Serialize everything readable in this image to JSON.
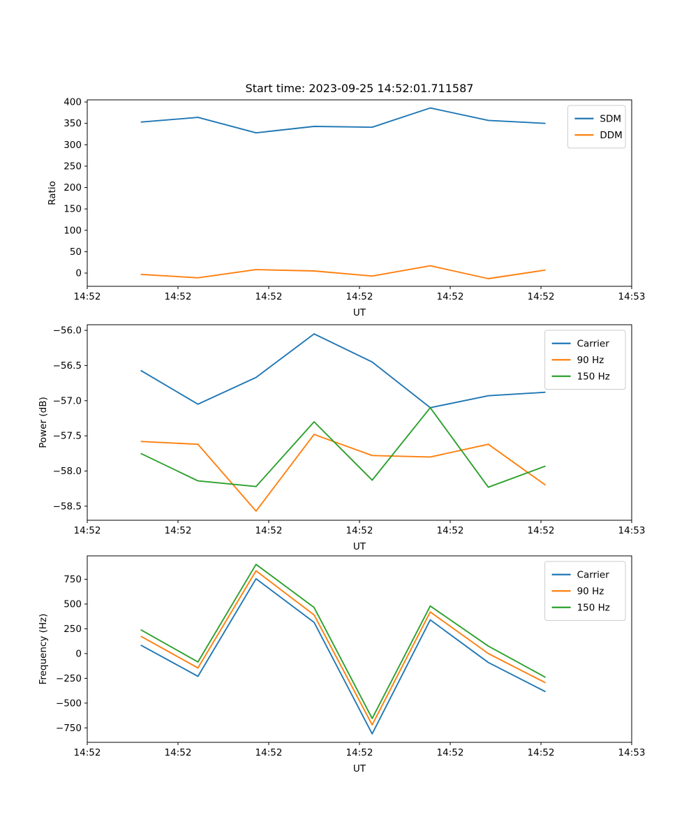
{
  "figure": {
    "title": "Start time: 2023-09-25 14:52:01.711587",
    "background": "#ffffff",
    "text_color": "#000000"
  },
  "palette": {
    "blue": "#1f77b4",
    "orange": "#ff7f0e",
    "green": "#2ca02c"
  },
  "chart_data": [
    {
      "type": "line",
      "name": "ratio",
      "ylabel": "Ratio",
      "xlabel": "UT",
      "xlim": [
        0,
        60
      ],
      "x_seconds": [
        5.9,
        12.2,
        18.6,
        25.0,
        31.4,
        37.8,
        44.2,
        50.5
      ],
      "x_tick_positions": [
        0,
        10,
        20,
        30,
        40,
        50,
        60
      ],
      "x_tick_labels": [
        "14:52",
        "14:52",
        "14:52",
        "14:52",
        "14:52",
        "14:52",
        "14:53"
      ],
      "ylim": [
        -31,
        405
      ],
      "y_tick_values": [
        0,
        50,
        100,
        150,
        200,
        250,
        300,
        350,
        400
      ],
      "y_tick_labels": [
        "0",
        "50",
        "100",
        "150",
        "200",
        "250",
        "300",
        "350",
        "400"
      ],
      "grid": false,
      "legend_position": "top-right",
      "series": [
        {
          "name": "SDM",
          "color": "#1f77b4",
          "values": [
            353,
            364,
            328,
            343,
            341,
            386,
            357,
            350
          ]
        },
        {
          "name": "DDM",
          "color": "#ff7f0e",
          "values": [
            -3,
            -11,
            8,
            5,
            -7,
            17,
            -13,
            7
          ]
        }
      ]
    },
    {
      "type": "line",
      "name": "power",
      "ylabel": "Power (dB)",
      "xlabel": "UT",
      "xlim": [
        0,
        60
      ],
      "x_seconds": [
        5.9,
        12.2,
        18.6,
        25.0,
        31.4,
        37.8,
        44.2,
        50.5
      ],
      "x_tick_positions": [
        0,
        10,
        20,
        30,
        40,
        50,
        60
      ],
      "x_tick_labels": [
        "14:52",
        "14:52",
        "14:52",
        "14:52",
        "14:52",
        "14:52",
        "14:53"
      ],
      "ylim": [
        -58.7,
        -55.92
      ],
      "y_tick_values": [
        -56.0,
        -56.5,
        -57.0,
        -57.5,
        -58.0,
        -58.5
      ],
      "y_tick_labels": [
        "−56.0",
        "−56.5",
        "−57.0",
        "−57.5",
        "−58.0",
        "−58.5"
      ],
      "grid": false,
      "legend_position": "top-right",
      "series": [
        {
          "name": "Carrier",
          "color": "#1f77b4",
          "values": [
            -56.57,
            -57.05,
            -56.67,
            -56.05,
            -56.45,
            -57.1,
            -56.93,
            -56.88
          ]
        },
        {
          "name": "90 Hz",
          "color": "#ff7f0e",
          "values": [
            -57.58,
            -57.62,
            -58.57,
            -57.48,
            -57.78,
            -57.8,
            -57.62,
            -58.2
          ]
        },
        {
          "name": "150 Hz",
          "color": "#2ca02c",
          "values": [
            -57.75,
            -58.14,
            -58.22,
            -57.3,
            -58.13,
            -57.1,
            -58.23,
            -57.93
          ]
        }
      ]
    },
    {
      "type": "line",
      "name": "frequency",
      "ylabel": "Frequency (Hz)",
      "xlabel": "UT",
      "xlim": [
        0,
        60
      ],
      "x_seconds": [
        5.9,
        12.2,
        18.6,
        25.0,
        31.4,
        37.8,
        44.2,
        50.5
      ],
      "x_tick_positions": [
        0,
        10,
        20,
        30,
        40,
        50,
        60
      ],
      "x_tick_labels": [
        "14:52",
        "14:52",
        "14:52",
        "14:52",
        "14:52",
        "14:52",
        "14:53"
      ],
      "ylim": [
        -896,
        986
      ],
      "y_tick_values": [
        750,
        500,
        250,
        0,
        -250,
        -500,
        -750
      ],
      "y_tick_labels": [
        "750",
        "500",
        "250",
        "0",
        "−250",
        "−500",
        "−750"
      ],
      "grid": false,
      "legend_position": "top-right",
      "series": [
        {
          "name": "Carrier",
          "color": "#1f77b4",
          "values": [
            85,
            -230,
            755,
            315,
            -810,
            340,
            -90,
            -385
          ]
        },
        {
          "name": "90 Hz",
          "color": "#ff7f0e",
          "values": [
            175,
            -145,
            835,
            390,
            -720,
            420,
            0,
            -295
          ]
        },
        {
          "name": "150 Hz",
          "color": "#2ca02c",
          "values": [
            240,
            -85,
            900,
            465,
            -655,
            480,
            75,
            -240
          ]
        }
      ]
    }
  ]
}
